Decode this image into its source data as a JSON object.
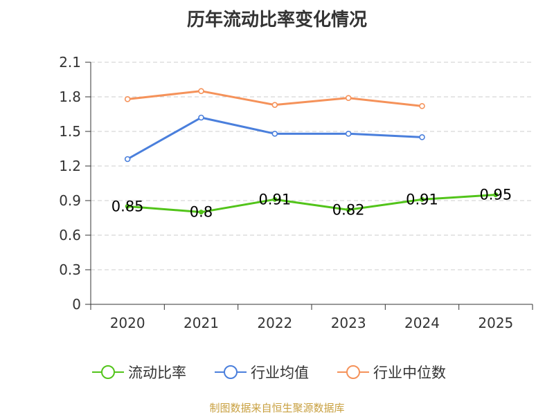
{
  "chart_data": {
    "type": "line",
    "title": "历年流动比率变化情况",
    "categories": [
      "2020",
      "2021",
      "2022",
      "2023",
      "2024",
      "2025"
    ],
    "ylim": [
      0,
      2.1
    ],
    "yticks": [
      "0",
      "0.3",
      "0.6",
      "0.9",
      "1.2",
      "1.5",
      "1.8",
      "2.1"
    ],
    "series": [
      {
        "name": "流动比率",
        "color": "#52c41a",
        "values": [
          0.85,
          0.8,
          0.91,
          0.82,
          0.91,
          0.95
        ],
        "labels": [
          "0.85",
          "0.8",
          "0.91",
          "0.82",
          "0.91",
          "0.95"
        ]
      },
      {
        "name": "行业均值",
        "color": "#4a7fdc",
        "values": [
          1.26,
          1.62,
          1.48,
          1.48,
          1.45,
          null
        ]
      },
      {
        "name": "行业中位数",
        "color": "#f5925a",
        "values": [
          1.78,
          1.85,
          1.73,
          1.79,
          1.72,
          null
        ]
      }
    ],
    "grid": true,
    "legend": "bottom"
  },
  "footer": {
    "source": "制图数据来自恒生聚源数据库"
  }
}
